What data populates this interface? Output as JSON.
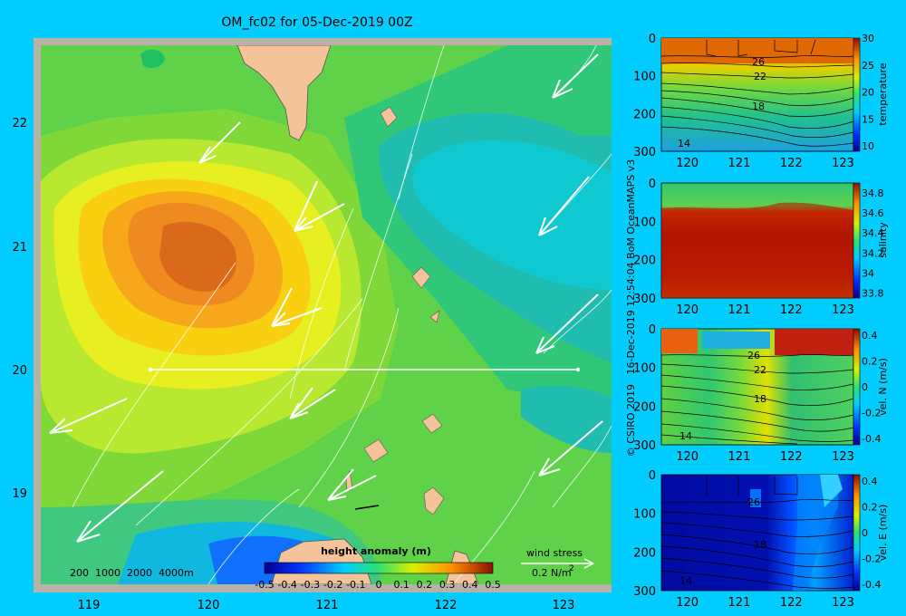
{
  "title": "OM_fc02 for 05-Dec-2019 00Z",
  "credit": "© CSIRO 2019   16-Dec-2019 12:54:04 BoM OceanMAPS v3",
  "colors": {
    "background": "#00ccff",
    "land": "#f5c39a",
    "frame": "#b8b1a6"
  },
  "map": {
    "lon_ticks": [
      "119",
      "120",
      "121",
      "122",
      "123"
    ],
    "lat_ticks": [
      "22",
      "21",
      "20",
      "19"
    ],
    "depth_legend": "200  1000  2000  4000m",
    "wind_legend_title": "wind stress",
    "wind_legend_value": "0.2 N/m",
    "wind_legend_sup": "2"
  },
  "chart_data": [
    {
      "type": "heatmap",
      "title": "height anomaly (m)",
      "xlabel": "",
      "ylabel": "",
      "xlim": [
        118.6,
        123.4
      ],
      "ylim": [
        18.3,
        22.7
      ],
      "colorbar_ticks": [
        "-0.5",
        "-0.4",
        "-0.3",
        "-0.2",
        "-0.1",
        "0",
        "0.1",
        "0.2",
        "0.3",
        "0.4",
        "0.5"
      ],
      "colorbar_range": [
        -0.5,
        0.5
      ],
      "features": {
        "max_anomaly_center": [
          120.1,
          20.95
        ],
        "max_anomaly_value": 0.35,
        "min_anomaly_center": [
          120.7,
          18.4
        ],
        "min_anomaly_value": -0.3
      },
      "section_line": {
        "lon": [
          119.5,
          123.2
        ],
        "lat": 20.0
      }
    },
    {
      "type": "heatmap",
      "ylabel": "temperature",
      "x_ticks": [
        "120",
        "121",
        "122",
        "123"
      ],
      "y_ticks": [
        "0",
        "100",
        "200",
        "300"
      ],
      "xlim": [
        119.5,
        123.2
      ],
      "ylim": [
        300,
        0
      ],
      "colorbar_ticks": [
        "30",
        "25",
        "20",
        "15",
        "10"
      ],
      "colorbar_range": [
        9,
        30
      ],
      "contour_labels": [
        "26",
        "22",
        "18",
        "14"
      ]
    },
    {
      "type": "heatmap",
      "ylabel": "salinity",
      "x_ticks": [
        "120",
        "121",
        "122",
        "123"
      ],
      "y_ticks": [
        "0",
        "100",
        "200",
        "300"
      ],
      "xlim": [
        119.5,
        123.2
      ],
      "ylim": [
        300,
        0
      ],
      "colorbar_ticks": [
        "34.8",
        "34.6",
        "34.4",
        "34.2",
        "34",
        "33.8"
      ],
      "colorbar_range": [
        33.75,
        34.9
      ]
    },
    {
      "type": "heatmap",
      "ylabel": "vel. N (m/s)",
      "x_ticks": [
        "120",
        "121",
        "122",
        "123"
      ],
      "y_ticks": [
        "0",
        "100",
        "200",
        "300"
      ],
      "xlim": [
        119.5,
        123.2
      ],
      "ylim": [
        300,
        0
      ],
      "colorbar_ticks": [
        "0.4",
        "0.2",
        "0",
        "-0.2",
        "-0.4"
      ],
      "colorbar_range": [
        -0.45,
        0.45
      ],
      "contour_labels": [
        "26",
        "22",
        "18",
        "14"
      ]
    },
    {
      "type": "heatmap",
      "ylabel": "vel. E (m/s)",
      "x_ticks": [
        "120",
        "121",
        "122",
        "123"
      ],
      "y_ticks": [
        "0",
        "100",
        "200",
        "300"
      ],
      "xlim": [
        119.5,
        123.2
      ],
      "ylim": [
        300,
        0
      ],
      "colorbar_ticks": [
        "0.4",
        "0.2",
        "0",
        "-0.2",
        "-0.4"
      ],
      "colorbar_range": [
        -0.45,
        0.45
      ],
      "contour_labels": [
        "26",
        "18",
        "14"
      ]
    }
  ]
}
